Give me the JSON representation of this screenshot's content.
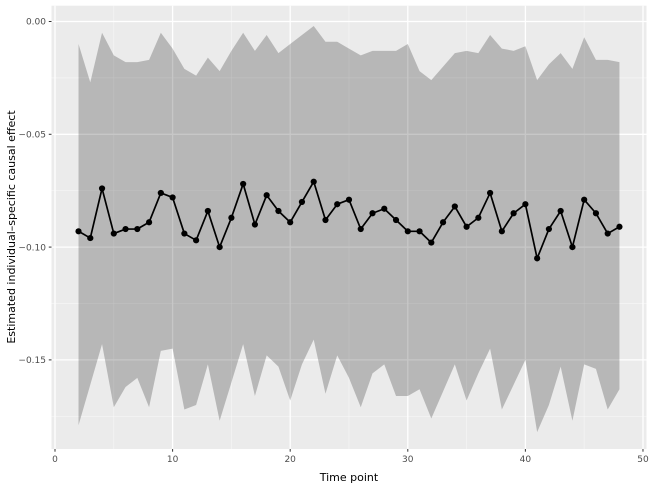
{
  "figure": {
    "background": "#FFFFFF"
  },
  "chart_data": {
    "type": "line",
    "title": "",
    "xlabel": "Time point",
    "ylabel": "Estimated individual–specific causal effect",
    "legend": "none",
    "panel_fill": "#EBEBEB",
    "grid": {
      "major_color": "#FFFFFF",
      "minor_color": "#FFFFFF",
      "minor_opacity": 0.55,
      "major_width": 1.3,
      "minor_width": 0.7
    },
    "ribbon": {
      "fill": "#000000",
      "opacity": 0.22
    },
    "line_color": "#000000",
    "point_radius": 3.1,
    "line_width": 1.7,
    "tick_color": "#333333",
    "tick_label_color": "#4D4D4D",
    "xlim": [
      -0.298,
      50.3
    ],
    "ylim": [
      -0.1895,
      0.007
    ],
    "x_ticks": {
      "major": [
        0,
        10,
        20,
        30,
        40,
        50
      ],
      "minor": [
        5,
        15,
        25,
        35,
        45
      ],
      "labels": [
        "0",
        "10",
        "20",
        "30",
        "40",
        "50"
      ]
    },
    "y_ticks": {
      "major": [
        0,
        -0.05,
        -0.1,
        -0.15
      ],
      "minor": [
        -0.025,
        -0.075,
        -0.125,
        -0.175
      ],
      "labels": [
        "0.00",
        "−0.05",
        "−0.10",
        "−0.15"
      ]
    },
    "x": [
      2,
      3,
      4,
      5,
      6,
      7,
      8,
      9,
      10,
      11,
      12,
      13,
      14,
      15,
      16,
      17,
      18,
      19,
      20,
      21,
      22,
      23,
      24,
      25,
      26,
      27,
      28,
      29,
      30,
      31,
      32,
      33,
      34,
      35,
      36,
      37,
      38,
      39,
      40,
      41,
      42,
      43,
      44,
      45,
      46,
      47,
      48
    ],
    "series": [
      {
        "name": "Estimated effect",
        "style": "line+points",
        "values": [
          -0.093,
          -0.096,
          -0.074,
          -0.094,
          -0.092,
          -0.092,
          -0.089,
          -0.076,
          -0.078,
          -0.094,
          -0.097,
          -0.084,
          -0.1,
          -0.087,
          -0.072,
          -0.09,
          -0.077,
          -0.084,
          -0.089,
          -0.08,
          -0.071,
          -0.088,
          -0.081,
          -0.079,
          -0.092,
          -0.085,
          -0.083,
          -0.088,
          -0.093,
          -0.093,
          -0.098,
          -0.089,
          -0.082,
          -0.091,
          -0.087,
          -0.076,
          -0.093,
          -0.085,
          -0.081,
          -0.105,
          -0.092,
          -0.084,
          -0.1,
          -0.079,
          -0.085,
          -0.094,
          -0.091
        ]
      },
      {
        "name": "Interval upper bound",
        "style": "ribbon-upper",
        "values": [
          -0.01,
          -0.027,
          -0.005,
          -0.015,
          -0.018,
          -0.018,
          -0.017,
          -0.005,
          -0.012,
          -0.021,
          -0.024,
          -0.016,
          -0.022,
          -0.013,
          -0.005,
          -0.013,
          -0.006,
          -0.014,
          -0.01,
          -0.006,
          -0.002,
          -0.009,
          -0.009,
          -0.012,
          -0.015,
          -0.013,
          -0.013,
          -0.013,
          -0.01,
          -0.022,
          -0.026,
          -0.02,
          -0.014,
          -0.013,
          -0.014,
          -0.006,
          -0.012,
          -0.013,
          -0.011,
          -0.026,
          -0.019,
          -0.014,
          -0.021,
          -0.007,
          -0.017,
          -0.017,
          -0.018
        ]
      },
      {
        "name": "Interval lower bound",
        "style": "ribbon-lower",
        "values": [
          -0.179,
          -0.161,
          -0.143,
          -0.171,
          -0.162,
          -0.158,
          -0.171,
          -0.146,
          -0.145,
          -0.172,
          -0.17,
          -0.152,
          -0.177,
          -0.16,
          -0.143,
          -0.166,
          -0.148,
          -0.153,
          -0.168,
          -0.152,
          -0.141,
          -0.165,
          -0.148,
          -0.158,
          -0.171,
          -0.156,
          -0.152,
          -0.166,
          -0.166,
          -0.163,
          -0.176,
          -0.164,
          -0.152,
          -0.168,
          -0.156,
          -0.145,
          -0.172,
          -0.161,
          -0.15,
          -0.182,
          -0.17,
          -0.153,
          -0.177,
          -0.152,
          -0.154,
          -0.172,
          -0.163
        ]
      }
    ]
  }
}
